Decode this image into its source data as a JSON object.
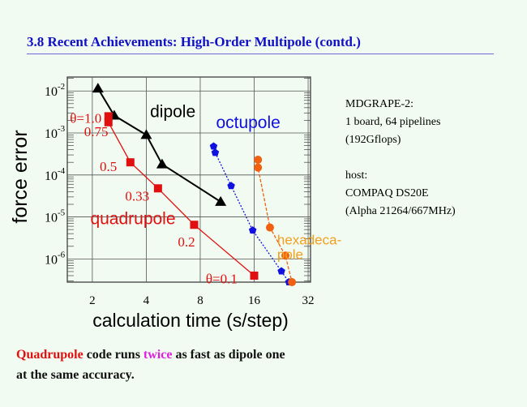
{
  "slide": {
    "title": "3.8 Recent Achievements: High-Order Multipole (contd.)",
    "side_text": [
      "MDGRAPE-2:",
      "1 board, 64 pipelines",
      "(192Gflops)",
      "",
      "host:",
      "COMPAQ DS20E",
      "(Alpha 21264/667MHz)"
    ],
    "footer": {
      "w1": "Quadrupole",
      "w2": " code runs ",
      "w3": "twice",
      "w4": " as fast as dipole one",
      "line2": "at the same accuracy."
    }
  },
  "chart_data": {
    "type": "line",
    "xlabel": "calculation time (s/step)",
    "ylabel": "force error",
    "xscale": "log2",
    "yscale": "log10",
    "xlim": [
      1.45,
      33
    ],
    "ylim": [
      2.8e-07,
      0.0215
    ],
    "xticks": [
      {
        "v": 2,
        "label": "2"
      },
      {
        "v": 4,
        "label": "4"
      },
      {
        "v": 8,
        "label": "8"
      },
      {
        "v": 16,
        "label": "16"
      },
      {
        "v": 32,
        "label": "32"
      }
    ],
    "yticks": [
      {
        "v": 0.01,
        "b": "10",
        "e": "-2"
      },
      {
        "v": 0.001,
        "b": "10",
        "e": "-3"
      },
      {
        "v": 0.0001,
        "b": "10",
        "e": "-4"
      },
      {
        "v": 1e-05,
        "b": "10",
        "e": "-5"
      },
      {
        "v": 1e-06,
        "b": "10",
        "e": "-6"
      }
    ],
    "grid": true,
    "series": [
      {
        "name": "dipole",
        "color": "#000000",
        "marker": "triangle",
        "dash": "",
        "x": [
          2.15,
          2.65,
          4,
          4.9,
          10.4
        ],
        "y": [
          0.0115,
          0.0026,
          0.0009,
          0.00018,
          2.3e-05
        ],
        "label_at": [
          4.2,
          0.0024
        ]
      },
      {
        "name": "quadrupole",
        "color": "#e01010",
        "marker": "square",
        "dash": "",
        "x": [
          2.46,
          2.46,
          3.26,
          4.65,
          7.4,
          16
        ],
        "y": [
          0.0025,
          0.0018,
          0.0002,
          4.8e-05,
          6.5e-06,
          4e-07
        ],
        "label_at": [
          1.95,
          6.8e-06
        ]
      },
      {
        "name": "octupole",
        "color": "#1010e0",
        "marker": "pentagon",
        "dash": "2,2",
        "x": [
          9.5,
          9.7,
          11.9,
          15.7,
          22.7,
          25
        ],
        "y": [
          0.00048,
          0.00034,
          5.5e-05,
          4.8e-06,
          5.1e-07,
          2.8e-07
        ],
        "label_at": [
          9.8,
          0.0013
        ]
      },
      {
        "name": "hexadeca-\npole",
        "color": "#f06010",
        "marker": "circle",
        "dash": "4,2",
        "x": [
          16.8,
          16.8,
          19.6,
          23.9,
          26
        ],
        "y": [
          0.00023,
          0.00015,
          5.6e-06,
          1.2e-06,
          2.8e-07
        ],
        "label_at": [
          21.5,
          2.2e-06
        ]
      }
    ],
    "annotations": [
      {
        "text": "θ=1.0",
        "x": 1.5,
        "y": 0.0023
      },
      {
        "text": "0.75",
        "x": 1.8,
        "y": 0.0011
      },
      {
        "text": "0.5",
        "x": 2.2,
        "y": 0.00016
      },
      {
        "text": "0.33",
        "x": 3.05,
        "y": 3.2e-05
      },
      {
        "text": "0.2",
        "x": 6.0,
        "y": 2.6e-06
      },
      {
        "text": "θ=0.1",
        "x": 8.6,
        "y": 3.4e-07
      }
    ]
  }
}
